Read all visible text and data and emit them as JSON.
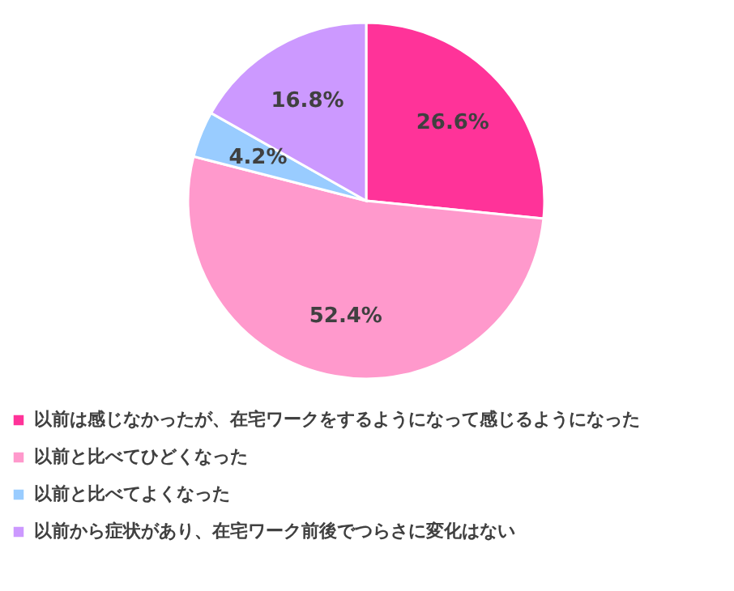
{
  "chart_data": {
    "type": "pie",
    "categories": [
      "以前は感じなかったが、在宅ワークをするようになって感じるようになった",
      "以前と比べてひどくなった",
      "以前と比べてよくなった",
      "以前から症状があり、在宅ワーク前後でつらさに変化はない"
    ],
    "values": [
      26.6,
      52.4,
      4.2,
      16.8
    ],
    "colors": [
      "#ff3399",
      "#ff99cc",
      "#99ccff",
      "#cc99ff"
    ],
    "value_labels": [
      "26.6%",
      "52.4%",
      "4.2%",
      "16.8%"
    ],
    "legend": "bottom"
  }
}
